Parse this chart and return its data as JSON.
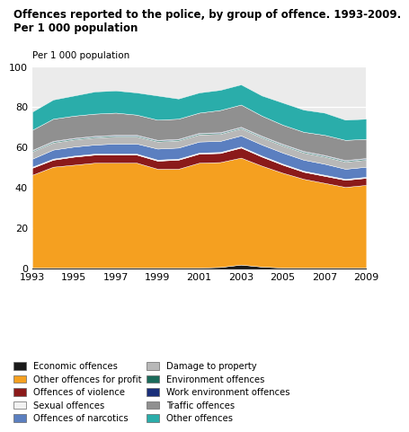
{
  "years": [
    1993,
    1994,
    1995,
    1996,
    1997,
    1998,
    1999,
    2000,
    2001,
    2002,
    2003,
    2004,
    2005,
    2006,
    2007,
    2008,
    2009
  ],
  "title": "Offences reported to the police, by group of offence. 1993-2009.\nPer 1 000 population",
  "ylabel": "Per 1 000 population",
  "ylim": [
    0,
    100
  ],
  "series": {
    "Economic offences": [
      0.5,
      0.5,
      0.5,
      0.5,
      0.5,
      0.5,
      0.5,
      0.5,
      0.5,
      0.8,
      2.0,
      1.0,
      0.5,
      0.5,
      0.5,
      0.5,
      0.5
    ],
    "Other offences for profit": [
      46,
      50,
      51,
      52,
      52,
      52,
      49,
      49,
      52,
      52,
      53,
      50,
      47,
      44,
      42,
      40,
      41
    ],
    "Offences of violence": [
      3.5,
      3.5,
      4.0,
      4.0,
      4.0,
      4.0,
      4.0,
      4.5,
      4.5,
      4.5,
      5.0,
      4.5,
      4.0,
      3.5,
      3.5,
      3.5,
      3.5
    ],
    "Sexual offences": [
      0.5,
      0.5,
      0.5,
      0.5,
      0.5,
      0.5,
      0.5,
      0.5,
      0.5,
      0.5,
      0.5,
      0.5,
      0.5,
      0.5,
      0.5,
      0.5,
      0.5
    ],
    "Offences of narcotics": [
      4.0,
      4.5,
      4.5,
      4.5,
      5.0,
      5.0,
      5.5,
      5.5,
      5.5,
      5.5,
      5.5,
      5.5,
      5.5,
      5.5,
      5.5,
      5.0,
      5.0
    ],
    "Damage to property": [
      3.5,
      3.5,
      3.5,
      3.5,
      3.5,
      3.5,
      3.5,
      3.5,
      3.5,
      3.5,
      3.5,
      3.5,
      3.5,
      3.5,
      3.5,
      3.5,
      3.5
    ],
    "Environment offences": [
      0.5,
      0.5,
      0.5,
      0.5,
      0.5,
      0.5,
      0.5,
      0.5,
      0.5,
      0.5,
      0.5,
      0.5,
      0.5,
      0.5,
      0.5,
      0.5,
      0.5
    ],
    "Work environment offences": [
      0.3,
      0.3,
      0.3,
      0.3,
      0.3,
      0.3,
      0.3,
      0.3,
      0.3,
      0.3,
      0.3,
      0.3,
      0.3,
      0.3,
      0.3,
      0.3,
      0.3
    ],
    "Traffic offences": [
      10,
      11,
      11,
      11,
      11,
      10,
      10,
      10,
      10,
      11,
      11,
      10,
      9.5,
      9.5,
      10,
      10,
      9.5
    ],
    "Other offences": [
      9,
      9.5,
      10,
      11,
      11,
      11,
      12,
      10,
      10,
      10,
      10,
      10,
      11,
      11,
      11,
      10,
      10
    ]
  },
  "colors": {
    "Economic offences": "#1a1a1a",
    "Other offences for profit": "#f5a020",
    "Offences of violence": "#8b1a1a",
    "Sexual offences": "#f2f2f2",
    "Offences of narcotics": "#5b7fc0",
    "Damage to property": "#b8b8b8",
    "Environment offences": "#1a6b5a",
    "Work environment offences": "#1a2f7a",
    "Traffic offences": "#909090",
    "Other offences": "#2aadaa"
  },
  "stack_order": [
    "Economic offences",
    "Other offences for profit",
    "Offences of violence",
    "Sexual offences",
    "Offences of narcotics",
    "Damage to property",
    "Environment offences",
    "Work environment offences",
    "Traffic offences",
    "Other offences"
  ],
  "legend_col1": [
    "Economic offences",
    "Offences of violence",
    "Offences of narcotics",
    "Environment offences",
    "Traffic offences"
  ],
  "legend_col2": [
    "Other offences for profit",
    "Sexual offences",
    "Damage to property",
    "Work environment offences",
    "Other offences"
  ],
  "bg_color": "#ebebeb"
}
